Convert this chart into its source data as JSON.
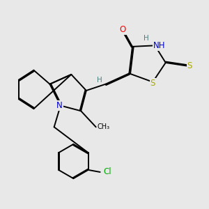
{
  "bg_color": "#e8e8e8",
  "fig_size": [
    3.0,
    3.0
  ],
  "dpi": 100,
  "atom_colors": {
    "C": "#000000",
    "N": "#0000cd",
    "O": "#ff0000",
    "S": "#aaaa00",
    "Cl": "#00aa00",
    "H": "#4d8080"
  },
  "line_color": "#000000",
  "line_width": 1.4,
  "font_size_atom": 8.5,
  "font_size_small": 7.0,
  "font_size_h": 7.5
}
